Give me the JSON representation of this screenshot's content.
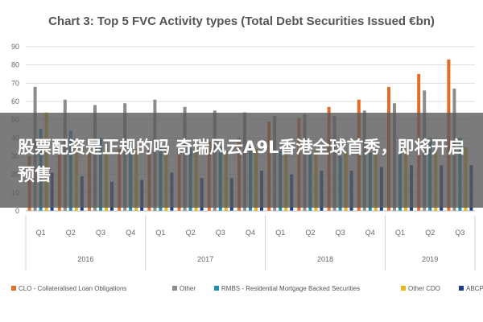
{
  "chart_data": {
    "type": "bar",
    "title": "Chart 3: Top 5 FVC Activity types (Total Debt Securities Issued €bn)",
    "xlabel": "",
    "ylabel": "",
    "ylim": [
      0,
      90
    ],
    "yticks": [
      0,
      10,
      20,
      30,
      40,
      50,
      60,
      70,
      80,
      90
    ],
    "grid": true,
    "legend_position": "bottom",
    "categories": [
      "Q1",
      "Q2",
      "Q3",
      "Q4",
      "Q1",
      "Q2",
      "Q3",
      "Q4",
      "Q1",
      "Q2",
      "Q3",
      "Q4",
      "Q1",
      "Q2",
      "Q3"
    ],
    "groups": [
      {
        "label": "2016",
        "count": 4
      },
      {
        "label": "2017",
        "count": 4
      },
      {
        "label": "2018",
        "count": 4
      },
      {
        "label": "2019",
        "count": 3
      }
    ],
    "series": [
      {
        "name": "CLO - Collateralised Loan Obligations",
        "color": "#e46c28",
        "values": [
          30,
          31,
          33,
          34,
          34,
          36,
          38,
          40,
          49,
          51,
          57,
          61,
          68,
          75,
          83
        ]
      },
      {
        "name": "Other",
        "color": "#8c8c8c",
        "values": [
          68,
          61,
          58,
          59,
          61,
          57,
          55,
          54,
          52,
          53,
          52,
          55,
          59,
          66,
          67
        ]
      },
      {
        "name": "RMBS - Residential Mortgage Backed Securities",
        "color": "#1f8fb0",
        "values": [
          45,
          44,
          40,
          37,
          36,
          35,
          35,
          35,
          33,
          31,
          30,
          32,
          37,
          40,
          40
        ]
      },
      {
        "name": "Other CDO",
        "color": "#e6b81e",
        "values": [
          54,
          38,
          34,
          34,
          36,
          35,
          33,
          34,
          33,
          33,
          33,
          33,
          34,
          34,
          35
        ]
      },
      {
        "name": "ABCP",
        "color": "#1f3c88",
        "values": [
          21,
          19,
          16,
          17,
          21,
          18,
          18,
          22,
          20,
          22,
          22,
          24,
          25,
          25,
          25
        ]
      }
    ]
  },
  "overlay": {
    "headline": "股票配资是正规的吗 奇瑞风云A9L香港全球首秀，即将开启预售"
  }
}
